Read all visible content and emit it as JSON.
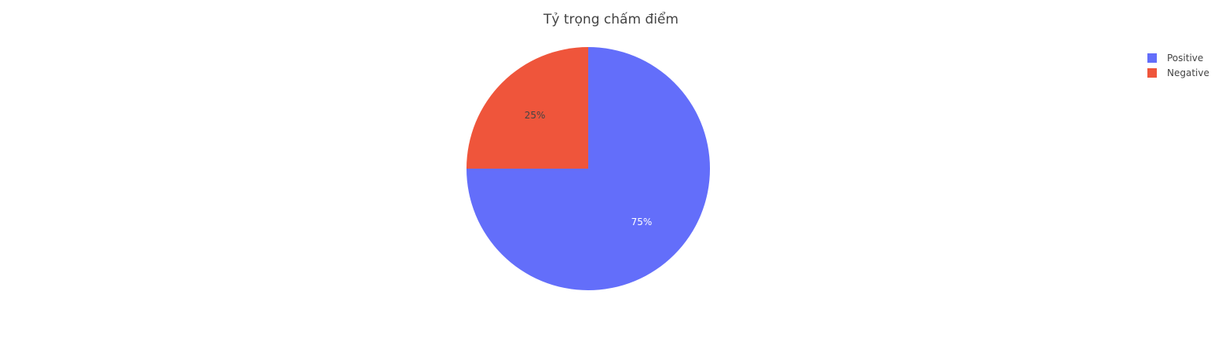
{
  "chart_data": {
    "type": "pie",
    "title": "Tỷ trọng chấm điểm",
    "categories": [
      "Positive",
      "Negative"
    ],
    "values": [
      75,
      25
    ],
    "labels": [
      "75%",
      "25%"
    ],
    "colors": [
      "#636efa",
      "#ef553b"
    ],
    "label_colors": [
      "#ffffff",
      "#444444"
    ],
    "legend_position": "top-right",
    "direction": "clockwise",
    "start": "top"
  }
}
